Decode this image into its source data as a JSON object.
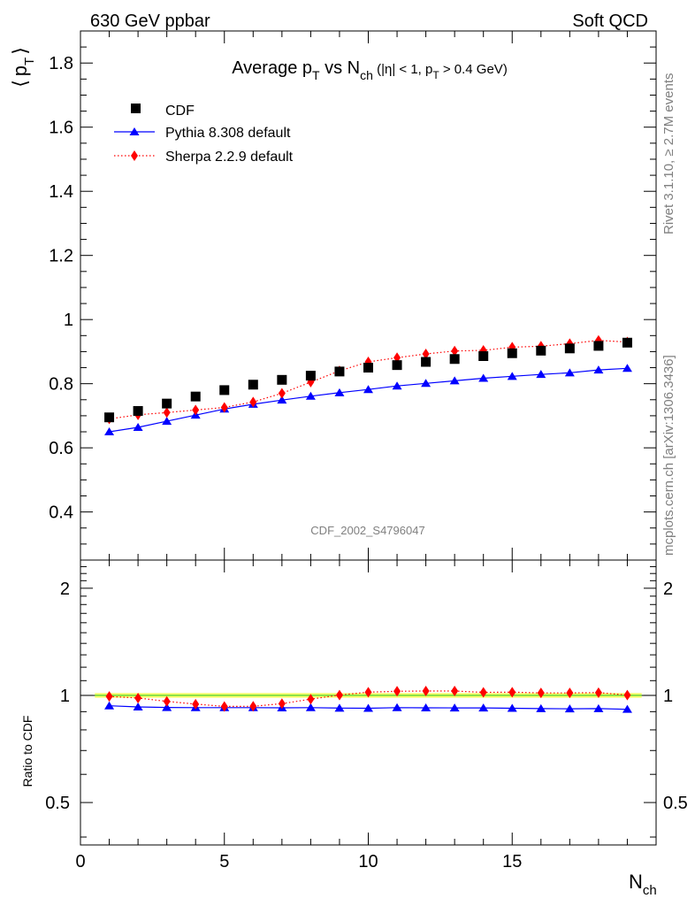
{
  "header": {
    "left": "630 GeV ppbar",
    "right": "Soft QCD"
  },
  "side_labels": {
    "rivet": "Rivet 3.1.10, ≥ 2.7M events",
    "mcplots": "mcplots.cern.ch [arXiv:1306.3436]"
  },
  "watermark": "CDF_2002_S4796047",
  "colors": {
    "cdf": "#000000",
    "pythia": "#0000ff",
    "sherpa": "#ff0000",
    "band_yellow": "#ffff66",
    "ref_green": "#33cc33"
  },
  "chart_data": [
    {
      "type": "scatter",
      "title": "Average p_T vs N_ch (|η| < 1, p_T > 0.4 GeV)",
      "title_parts": {
        "main": "Average p",
        "sub1": "T",
        "mid": " vs N",
        "sub2": "ch",
        "cut_a": " (|η| < 1, p",
        "sub3": "T",
        "cut_b": " > 0.4 GeV)"
      },
      "ylabel": "⟨ p_T ⟩",
      "ylabel_parts": {
        "open": "⟨",
        "p": "p",
        "sub": "T",
        "close": "⟩"
      },
      "xlim": [
        0,
        20
      ],
      "ylim": [
        0.25,
        1.9
      ],
      "yticks": [
        0.4,
        0.6,
        0.8,
        1.0,
        1.2,
        1.4,
        1.6,
        1.8
      ],
      "ytick_labels": [
        "0.4",
        "0.6",
        "0.8",
        "1",
        "1.2",
        "1.4",
        "1.6",
        "1.8"
      ],
      "legend_position": "top-left",
      "x": [
        1,
        2,
        3,
        4,
        5,
        6,
        7,
        8,
        9,
        10,
        11,
        12,
        13,
        14,
        15,
        16,
        17,
        18,
        19
      ],
      "series": [
        {
          "name": "CDF",
          "marker": "square",
          "line": "none",
          "values": [
            0.695,
            0.715,
            0.738,
            0.76,
            0.78,
            0.797,
            0.812,
            0.825,
            0.838,
            0.85,
            0.858,
            0.868,
            0.877,
            0.886,
            0.895,
            0.903,
            0.91,
            0.918,
            0.928
          ]
        },
        {
          "name": "Pythia 8.308 default",
          "marker": "triangle",
          "line": "solid",
          "values": [
            0.65,
            0.664,
            0.683,
            0.702,
            0.721,
            0.736,
            0.749,
            0.761,
            0.772,
            0.782,
            0.793,
            0.801,
            0.809,
            0.817,
            0.823,
            0.829,
            0.834,
            0.843,
            0.848
          ]
        },
        {
          "name": "Sherpa 2.2.9 default",
          "marker": "diamond",
          "line": "dotted",
          "values": [
            0.69,
            0.703,
            0.71,
            0.718,
            0.726,
            0.743,
            0.77,
            0.805,
            0.84,
            0.868,
            0.881,
            0.893,
            0.902,
            0.904,
            0.914,
            0.917,
            0.925,
            0.935,
            0.93
          ]
        }
      ]
    },
    {
      "type": "scatter",
      "ylabel": "Ratio to CDF",
      "xlabel": "N_ch",
      "xlabel_parts": {
        "main": "N",
        "sub": "ch"
      },
      "xlim": [
        0,
        20
      ],
      "ylim": [
        0.38,
        2.4
      ],
      "log_y": true,
      "yticks": [
        0.5,
        1,
        2
      ],
      "ytick_labels": [
        "0.5",
        "1",
        "2"
      ],
      "xticks": [
        0,
        5,
        10,
        15
      ],
      "xtick_labels": [
        "0",
        "5",
        "10",
        "15"
      ],
      "x": [
        1,
        2,
        3,
        4,
        5,
        6,
        7,
        8,
        9,
        10,
        11,
        12,
        13,
        14,
        15,
        16,
        17,
        18,
        19
      ],
      "series": [
        {
          "name": "Pythia 8.308 default",
          "marker": "triangle",
          "line": "solid",
          "values": [
            0.935,
            0.928,
            0.925,
            0.924,
            0.924,
            0.924,
            0.923,
            0.924,
            0.921,
            0.92,
            0.924,
            0.923,
            0.922,
            0.922,
            0.92,
            0.918,
            0.917,
            0.918,
            0.914
          ]
        },
        {
          "name": "Sherpa 2.2.9 default",
          "marker": "diamond",
          "line": "dotted",
          "values": [
            0.993,
            0.983,
            0.962,
            0.945,
            0.931,
            0.932,
            0.948,
            0.976,
            1.002,
            1.021,
            1.027,
            1.029,
            1.029,
            1.02,
            1.021,
            1.016,
            1.016,
            1.018,
            1.002
          ]
        }
      ]
    }
  ]
}
